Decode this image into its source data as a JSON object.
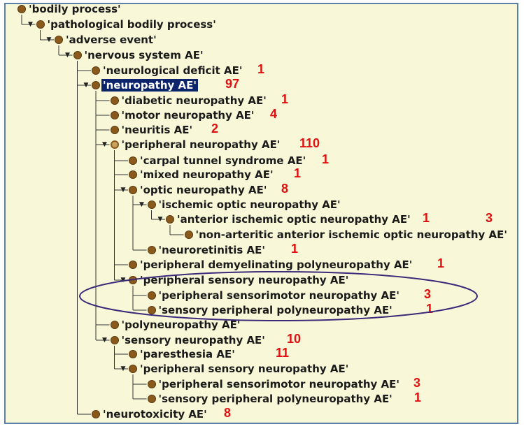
{
  "tree": [
    {
      "label": "'bodily process'",
      "count": "",
      "toggle": ""
    },
    {
      "label": "'pathological bodily process'",
      "count": "",
      "toggle": "expanded"
    },
    {
      "label": "'adverse event'",
      "count": "",
      "toggle": "expanded"
    },
    {
      "label": "'nervous system AE'",
      "count": "",
      "toggle": "expanded"
    },
    {
      "label": "'neurological deficit AE'",
      "count": "1",
      "toggle": ""
    },
    {
      "label": "'neuropathy AE'",
      "count": "97",
      "toggle": "expanded",
      "selected": true
    },
    {
      "label": "'diabetic neuropathy AE'",
      "count": "1",
      "toggle": ""
    },
    {
      "label": "'motor neuropathy AE'",
      "count": "4",
      "toggle": ""
    },
    {
      "label": "'neuritis AE'",
      "count": "2",
      "toggle": ""
    },
    {
      "label": "'peripheral neuropathy AE'",
      "count": "110",
      "toggle": "expanded",
      "hollow": true
    },
    {
      "label": "'carpal tunnel syndrome AE'",
      "count": "1",
      "toggle": ""
    },
    {
      "label": "'mixed neuropathy AE'",
      "count": "1",
      "toggle": ""
    },
    {
      "label": "'optic neuropathy AE'",
      "count": "8",
      "toggle": "expanded"
    },
    {
      "label": "'ischemic optic neuropathy AE'",
      "count": "",
      "toggle": "expanded"
    },
    {
      "label": "'anterior ischemic optic neuropathy AE'",
      "count": "1",
      "toggle": "expanded",
      "extra_count": "3"
    },
    {
      "label": "'non-arteritic anterior ischemic optic neuropathy AE'",
      "count": "",
      "toggle": ""
    },
    {
      "label": "'neuroretinitis AE'",
      "count": "1",
      "toggle": ""
    },
    {
      "label": "'peripheral demyelinating polyneuropathy AE'",
      "count": "1",
      "toggle": ""
    },
    {
      "label": "'peripheral sensory neuropathy AE'",
      "count": "",
      "toggle": "expanded"
    },
    {
      "label": "'peripheral sensorimotor neuropathy AE'",
      "count": "3",
      "toggle": ""
    },
    {
      "label": "'sensory peripheral polyneuropathy AE'",
      "count": "1",
      "toggle": ""
    },
    {
      "label": "'polyneuropathy AE'",
      "count": "",
      "toggle": ""
    },
    {
      "label": "'sensory neuropathy AE'",
      "count": "10",
      "toggle": "expanded"
    },
    {
      "label": "'paresthesia AE'",
      "count": "11",
      "toggle": ""
    },
    {
      "label": "'peripheral sensory neuropathy AE'",
      "count": "",
      "toggle": "expanded"
    },
    {
      "label": "'peripheral sensorimotor neuropathy AE'",
      "count": "3",
      "toggle": ""
    },
    {
      "label": "'sensory peripheral polyneuropathy AE'",
      "count": "1",
      "toggle": ""
    },
    {
      "label": "'neurotoxicity AE'",
      "count": "8",
      "toggle": ""
    }
  ],
  "colors": {
    "count": "#e01010",
    "selection": "#0b246b",
    "dot": "#8a5a1c",
    "background": "#f8f8d8",
    "ellipse": "#3b2a7a"
  }
}
